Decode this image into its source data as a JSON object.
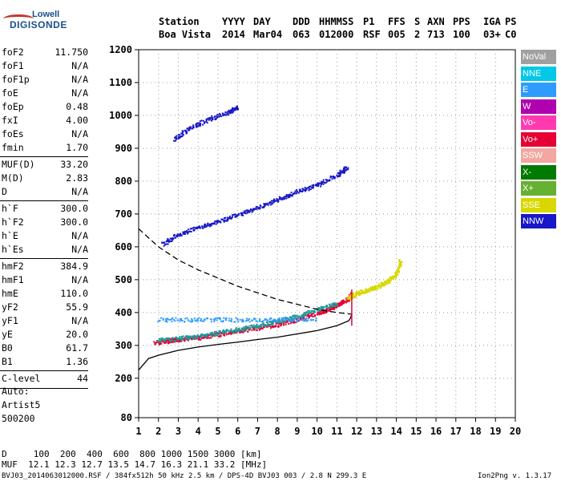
{
  "logo": {
    "line1": "Lowell",
    "line2": "DIGISONDE"
  },
  "header": {
    "labels": [
      "Station",
      "YYYY",
      "DAY",
      "DDD",
      "HHMMSS",
      "P1",
      "FFS",
      "S",
      "AXN",
      "PPS",
      "IGA",
      "PS"
    ],
    "values": [
      "Boa Vista",
      "2014",
      "Mar04",
      "063",
      "012000",
      "RSF",
      "005",
      "2",
      "713",
      "100",
      "03+",
      "C0"
    ]
  },
  "params": [
    {
      "key": "foF2",
      "val": "11.750"
    },
    {
      "key": "foF1",
      "val": "N/A"
    },
    {
      "key": "foF1p",
      "val": "N/A"
    },
    {
      "key": "foE",
      "val": "N/A"
    },
    {
      "key": "foEp",
      "val": "0.48"
    },
    {
      "key": "fxI",
      "val": "4.00"
    },
    {
      "key": "foEs",
      "val": "N/A"
    },
    {
      "key": "fmin",
      "val": "1.70"
    },
    {
      "key": "MUF(D)",
      "val": "33.20"
    },
    {
      "key": "M(D)",
      "val": "2.83"
    },
    {
      "key": "D",
      "val": "N/A"
    },
    {
      "key": "h`F",
      "val": "300.0"
    },
    {
      "key": "h`F2",
      "val": "300.0"
    },
    {
      "key": "h`E",
      "val": "N/A"
    },
    {
      "key": "h`Es",
      "val": "N/A"
    },
    {
      "key": "hmF2",
      "val": "384.9"
    },
    {
      "key": "hmF1",
      "val": "N/A"
    },
    {
      "key": "hmE",
      "val": "110.0"
    },
    {
      "key": "yF2",
      "val": "55.9"
    },
    {
      "key": "yF1",
      "val": "N/A"
    },
    {
      "key": "yE",
      "val": "20.0"
    },
    {
      "key": "B0",
      "val": "61.7"
    },
    {
      "key": "B1",
      "val": "1.36"
    },
    {
      "key": "C-level",
      "val": "44"
    }
  ],
  "auto": {
    "line1": "Auto:",
    "line2": "Artist5",
    "line3": "500200"
  },
  "legend": [
    {
      "label": "NoVal",
      "color": "#a0a0a0"
    },
    {
      "label": "NNE",
      "color": "#00c8e6"
    },
    {
      "label": "E",
      "color": "#2e9bff"
    },
    {
      "label": "W",
      "color": "#b000b0"
    },
    {
      "label": "Vo-",
      "color": "#ff3ab0"
    },
    {
      "label": "Vo+",
      "color": "#e60033"
    },
    {
      "label": "SSW",
      "color": "#f2a7a0"
    },
    {
      "label": "X-",
      "color": "#007a00"
    },
    {
      "label": "X+",
      "color": "#66b032"
    },
    {
      "label": "SSE",
      "color": "#d8d800"
    },
    {
      "label": "NNW",
      "color": "#1818c8"
    }
  ],
  "footer": {
    "d_line": "D     100  200  400  600  800 1000 1500 3000 [km]",
    "muf_line": "MUF  12.1 12.3 12.7 13.5 14.7 16.3 21.1 33.2 [MHz]",
    "file_line": "BVJ03_2014063012000.RSF / 384fx512h 50 kHz 2.5 km / DPS-4D BVJ03 003 / 2.8 N 299.3 E",
    "version": "Ion2Png v. 1.3.17"
  },
  "chart_data": {
    "type": "scatter",
    "xlim": [
      1,
      20
    ],
    "ylim": [
      80,
      1200
    ],
    "x_ticks": [
      1,
      2,
      3,
      4,
      5,
      6,
      7,
      8,
      9,
      10,
      11,
      12,
      13,
      14,
      15,
      16,
      17,
      18,
      19,
      20
    ],
    "y_ticks": [
      80,
      200,
      300,
      400,
      500,
      600,
      700,
      800,
      900,
      1000,
      1100,
      1200
    ],
    "grid": "dotted",
    "legend_position": "right",
    "traces": [
      {
        "name": "O-trace",
        "color": "#e60033",
        "x": [
          1.8,
          2.5,
          3,
          4,
          5,
          6,
          7,
          8,
          9,
          10,
          10.5,
          11,
          11.5,
          11.75
        ],
        "y": [
          310,
          315,
          320,
          325,
          335,
          345,
          355,
          365,
          380,
          400,
          410,
          425,
          440,
          460
        ]
      },
      {
        "name": "O-trace-teal",
        "color": "#1a9a9a",
        "x": [
          2,
          3,
          4,
          5,
          6,
          7,
          8,
          9,
          10,
          11
        ],
        "y": [
          318,
          322,
          330,
          340,
          350,
          362,
          375,
          390,
          410,
          430
        ]
      },
      {
        "name": "X-trace",
        "color": "#d8d800",
        "x": [
          11.5,
          12,
          12.5,
          13,
          13.5,
          14,
          14.2
        ],
        "y": [
          445,
          460,
          470,
          480,
          495,
          520,
          560
        ]
      },
      {
        "name": "second-hop",
        "color": "#1818c8",
        "x": [
          2.2,
          3,
          4,
          5,
          6,
          7,
          8,
          9,
          10,
          11,
          11.5
        ],
        "y": [
          610,
          640,
          660,
          680,
          700,
          720,
          745,
          770,
          790,
          820,
          845
        ]
      },
      {
        "name": "third-hop",
        "color": "#1818c8",
        "x": [
          2.8,
          3.5,
          4.5,
          5.5,
          6
        ],
        "y": [
          930,
          960,
          990,
          1010,
          1030
        ]
      },
      {
        "name": "E-band",
        "color": "#2e9bff",
        "x": [
          2,
          4,
          6,
          8,
          10
        ],
        "y": [
          380,
          380,
          380,
          380,
          380
        ]
      }
    ],
    "profile_solid": {
      "x": [
        1,
        1.5,
        2,
        3,
        4,
        5,
        6,
        7,
        8,
        9,
        10,
        11,
        11.6,
        11.7,
        11.75
      ],
      "y": [
        225,
        260,
        270,
        285,
        295,
        303,
        310,
        318,
        325,
        335,
        345,
        360,
        375,
        385,
        395
      ]
    },
    "profile_dashed": {
      "x": [
        1,
        2,
        3,
        4,
        5,
        6,
        7,
        8,
        9,
        10,
        11,
        11.75
      ],
      "y": [
        655,
        600,
        560,
        530,
        505,
        480,
        460,
        440,
        425,
        410,
        400,
        395
      ]
    }
  }
}
